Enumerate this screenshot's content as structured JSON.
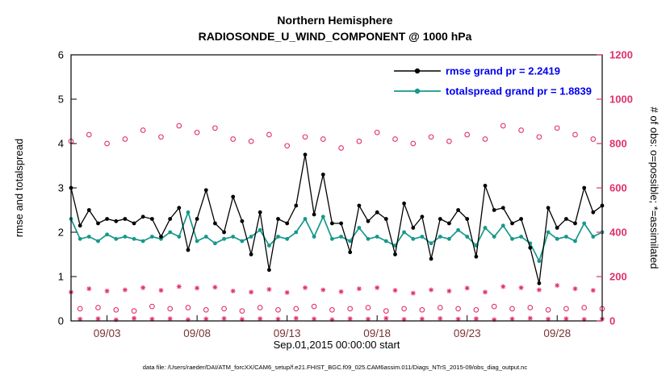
{
  "figure": {
    "title_line1": "Northern Hemisphere",
    "title_line2": "RADIOSONDE_U_WIND_COMPONENT @ 1000 hPa",
    "xlabel": "Sep.01,2015 00:00:00 start",
    "ylabel_left": "rmse and totalspread",
    "ylabel_right": "# of obs: o=possible; *=assimilated",
    "caption": "data file: /Users/raeder/DAI/ATM_forcXX/CAM6_setup/f.e21.FHIST_BGC.f09_025.CAM6assim.011/Diags_NTrS_2015-09/obs_diag_output.nc",
    "legend": [
      {
        "label": "rmse grand pr = 2.2419",
        "color": "#000000"
      },
      {
        "label": "totalspread grand pr = 1.8839",
        "color": "#16988b"
      }
    ]
  },
  "colors": {
    "obs_pink": "#e0306a",
    "spread_teal": "#16988b",
    "legend_text_blue": "#0000ee",
    "x_tick_label": "#7a3333",
    "axis_black": "#000000"
  },
  "chart_data": {
    "type": "line",
    "title": "Northern Hemisphere — RADIOSONDE_U_WIND_COMPONENT @ 1000 hPa",
    "x_axis": "days of September 2015, 12-hourly from Sep.01,2015 00:00:00",
    "x_range": [
      1,
      30.5
    ],
    "x_ticks": [
      {
        "day": 3,
        "label": "09/03"
      },
      {
        "day": 8,
        "label": "09/08"
      },
      {
        "day": 13,
        "label": "09/13"
      },
      {
        "day": 18,
        "label": "09/18"
      },
      {
        "day": 23,
        "label": "09/23"
      },
      {
        "day": 28,
        "label": "09/28"
      }
    ],
    "left_axis": {
      "label": "rmse and totalspread",
      "min": 0,
      "max": 6,
      "ticks": [
        0,
        1,
        2,
        3,
        4,
        5,
        6
      ]
    },
    "right_axis": {
      "label": "# of obs: o=possible; *=assimilated",
      "min": 0,
      "max": 1200,
      "ticks": [
        0,
        200,
        400,
        600,
        800,
        1000,
        1200
      ]
    },
    "grand_statistics": {
      "rmse_grand_pr": 2.2419,
      "totalspread_grand_pr": 1.8839
    },
    "x_days": [
      1,
      1.5,
      2,
      2.5,
      3,
      3.5,
      4,
      4.5,
      5,
      5.5,
      6,
      6.5,
      7,
      7.5,
      8,
      8.5,
      9,
      9.5,
      10,
      10.5,
      11,
      11.5,
      12,
      12.5,
      13,
      13.5,
      14,
      14.5,
      15,
      15.5,
      16,
      16.5,
      17,
      17.5,
      18,
      18.5,
      19,
      19.5,
      20,
      20.5,
      21,
      21.5,
      22,
      22.5,
      23,
      23.5,
      24,
      24.5,
      25,
      25.5,
      26,
      26.5,
      27,
      27.5,
      28,
      28.5,
      29,
      29.5,
      30,
      30.5
    ],
    "series": [
      {
        "name": "possible",
        "axis": "right",
        "marker": "open-circle",
        "line": false,
        "color": "#e0306a",
        "values": [
          810,
          55,
          840,
          60,
          800,
          50,
          820,
          45,
          860,
          65,
          830,
          55,
          880,
          60,
          850,
          50,
          870,
          55,
          820,
          45,
          810,
          60,
          840,
          50,
          790,
          55,
          830,
          65,
          820,
          50,
          780,
          55,
          810,
          60,
          850,
          45,
          820,
          55,
          800,
          50,
          830,
          60,
          810,
          55,
          840,
          50,
          820,
          65,
          880,
          55,
          860,
          60,
          830,
          50,
          870,
          55,
          840,
          60,
          820,
          55
        ]
      },
      {
        "name": "assimilated",
        "axis": "right",
        "marker": "asterisk",
        "line": false,
        "color": "#e0306a",
        "values": [
          130,
          8,
          145,
          10,
          135,
          5,
          140,
          12,
          150,
          8,
          138,
          10,
          155,
          6,
          148,
          9,
          152,
          11,
          135,
          7,
          130,
          10,
          142,
          8,
          128,
          12,
          150,
          9,
          140,
          6,
          132,
          10,
          145,
          8,
          150,
          12,
          138,
          7,
          125,
          9,
          140,
          11,
          135,
          8,
          148,
          10,
          130,
          6,
          155,
          9,
          150,
          12,
          140,
          8,
          160,
          10,
          145,
          7,
          138,
          9
        ]
      },
      {
        "name": "totalspread",
        "axis": "left",
        "marker": "filled-circle",
        "line": true,
        "color": "#16988b",
        "values": [
          2.3,
          1.85,
          1.9,
          1.8,
          1.95,
          1.85,
          1.9,
          1.85,
          1.8,
          1.9,
          1.85,
          2.0,
          1.9,
          2.45,
          1.8,
          1.9,
          1.75,
          1.85,
          1.9,
          1.8,
          1.9,
          2.05,
          1.7,
          1.9,
          1.85,
          2.0,
          2.3,
          1.9,
          2.35,
          1.85,
          1.9,
          1.8,
          2.1,
          1.85,
          1.9,
          1.8,
          1.7,
          2.0,
          1.85,
          1.9,
          1.75,
          1.9,
          1.85,
          2.05,
          1.9,
          1.7,
          2.1,
          1.9,
          2.15,
          1.85,
          1.9,
          1.75,
          1.35,
          2.0,
          1.85,
          1.9,
          1.8,
          2.2,
          1.9,
          2.0
        ]
      },
      {
        "name": "rmse",
        "axis": "left",
        "marker": "filled-circle",
        "line": true,
        "color": "#000000",
        "values": [
          3.0,
          2.15,
          2.5,
          2.2,
          2.3,
          2.25,
          2.3,
          2.2,
          2.35,
          2.3,
          1.9,
          2.3,
          2.55,
          1.6,
          2.3,
          2.95,
          2.2,
          2.0,
          2.8,
          2.25,
          1.5,
          2.45,
          1.15,
          2.3,
          2.2,
          2.6,
          3.75,
          2.4,
          3.3,
          2.2,
          2.2,
          1.55,
          2.6,
          2.25,
          2.45,
          2.3,
          1.5,
          2.65,
          2.1,
          2.35,
          1.4,
          2.3,
          2.2,
          2.5,
          2.3,
          1.45,
          3.05,
          2.5,
          2.55,
          2.2,
          2.3,
          1.65,
          0.85,
          2.55,
          2.1,
          2.3,
          2.2,
          3.0,
          2.45,
          2.6
        ]
      }
    ],
    "legend_position": "top-right inside plot, no box",
    "grid": false
  }
}
